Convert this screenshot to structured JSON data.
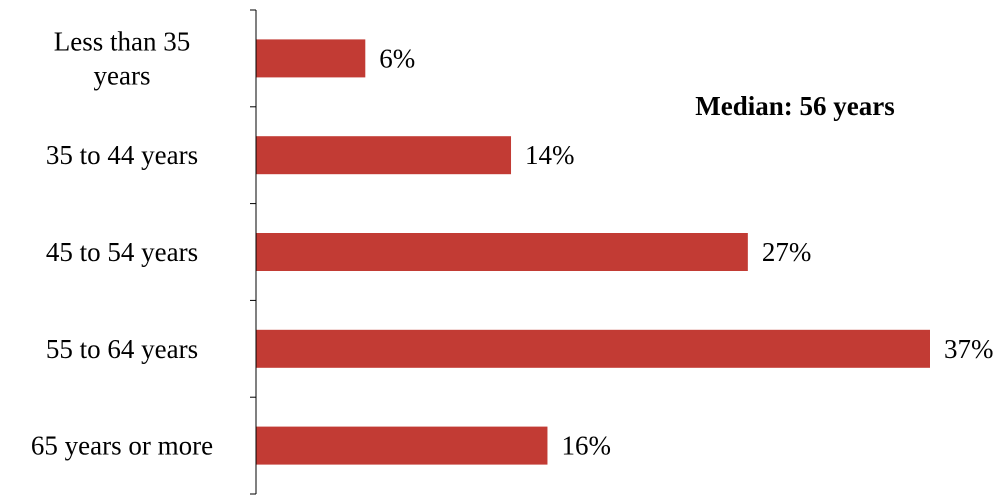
{
  "chart_data": {
    "type": "bar",
    "orientation": "horizontal",
    "categories": [
      "Less than 35 years",
      "35 to 44 years",
      "45 to 54 years",
      "55 to 64 years",
      "65 years or more"
    ],
    "category_lines": [
      [
        "Less than 35",
        "years"
      ],
      [
        "35 to 44 years"
      ],
      [
        "45 to 54 years"
      ],
      [
        "55 to 64 years"
      ],
      [
        "65 years or more"
      ]
    ],
    "values": [
      6,
      14,
      27,
      37,
      16
    ],
    "value_labels": [
      "6%",
      "14%",
      "27%",
      "37%",
      "16%"
    ],
    "annotation": "Median: 56 years",
    "xlim": [
      0,
      37
    ],
    "grid": false,
    "legend": "none",
    "colors": {
      "bar": "#c23b34",
      "axis": "#000000"
    }
  }
}
